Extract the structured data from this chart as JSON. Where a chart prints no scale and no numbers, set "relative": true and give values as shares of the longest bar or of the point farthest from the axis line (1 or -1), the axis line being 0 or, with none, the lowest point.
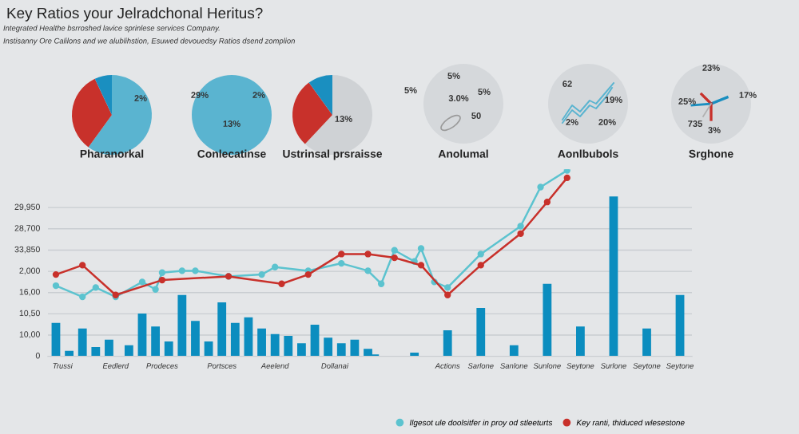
{
  "chart_data": [
    {
      "type": "other",
      "title": "Key Ratios your Jelradchonal Heritus?",
      "subtitle": "Integrated Healthe bsrroshed lavice sprinlese services Company.",
      "annotations": [
        "Instisanny Ore Calilons and we alublihstion, Esuwed devouedsy Ratios dsend zomplion"
      ]
    },
    {
      "type": "pie",
      "title": "Pharanorkal",
      "categories": [
        null,
        null,
        null
      ],
      "values": [
        60,
        33,
        7
      ],
      "colors": [
        "#5ab4d0",
        "#c8312b",
        "#1a8fc0"
      ],
      "annotations": [
        "2%"
      ]
    },
    {
      "type": "pie",
      "title": "Conlecatinse",
      "categories": [
        null
      ],
      "values": [
        100
      ],
      "colors": [
        "#5ab4d0"
      ],
      "annotations": [
        "2%",
        "13%",
        "29%"
      ]
    },
    {
      "type": "pie",
      "title": "Ustrinsal prsraisse",
      "categories": [
        null,
        null,
        null
      ],
      "values": [
        62,
        28,
        10
      ],
      "colors": [
        "#cfd2d5",
        "#c8312b",
        "#1a8fc0"
      ],
      "annotations": [
        "13%"
      ]
    },
    {
      "type": "other",
      "title": "Anolumal",
      "annotations": [
        "5%",
        "5%",
        "3.0%",
        "5%",
        "50"
      ]
    },
    {
      "type": "other",
      "title": "Aonlbubols",
      "annotations": [
        "62",
        "19%",
        "2%",
        "20%"
      ]
    },
    {
      "type": "other",
      "title": "Srghone",
      "annotations": [
        "23%",
        "25%",
        "17%",
        "735",
        "3%"
      ]
    },
    {
      "type": "bar",
      "relative": true,
      "grid": "y",
      "legend": "bottom",
      "marker": "circle",
      "categories": [
        null,
        "Trussi",
        null,
        null,
        null,
        null,
        null,
        null,
        null,
        "Eedlerd",
        null,
        null,
        null,
        null,
        null,
        null,
        "Prodeces",
        null,
        null,
        null,
        null,
        null,
        null,
        null,
        null,
        "Portsces",
        null,
        null,
        null,
        null,
        null,
        null,
        null,
        "Aeelend",
        null,
        null,
        null,
        null,
        null,
        null,
        null,
        null,
        "Dollanai",
        null,
        null,
        null,
        null,
        null,
        null,
        null,
        null,
        null,
        null,
        null,
        null,
        null,
        null,
        null,
        null,
        "Actions",
        null,
        null,
        null,
        null,
        "Sarlone",
        null,
        null,
        null,
        null,
        "Sanlone",
        null,
        null,
        null,
        null,
        "Sunlone",
        null,
        null,
        null,
        null,
        "Seytone",
        null,
        null,
        null,
        null,
        "Surlone",
        null,
        null,
        null,
        null,
        "Seytone",
        null,
        null,
        null,
        null,
        "Seytone"
      ],
      "annotations": [
        "0",
        "10,00",
        "10,50",
        "16,00",
        "2,000",
        "33,850",
        "28,700",
        "29,950"
      ],
      "series": [
        {
          "type": "bar",
          "color": "#0b8dbf",
          "values": [
            0.18,
            null,
            0.03,
            null,
            0.15,
            null,
            0.05,
            null,
            0.09,
            null,
            null,
            0.06,
            null,
            0.23,
            null,
            0.16,
            null,
            0.08,
            null,
            0.33,
            null,
            0.19,
            null,
            0.08,
            null,
            0.29,
            null,
            0.18,
            null,
            0.21,
            null,
            0.15,
            null,
            0.12,
            null,
            0.11,
            null,
            0.07,
            null,
            0.17,
            null,
            0.1,
            null,
            0.07,
            null,
            0.09,
            null,
            0.04,
            0.01,
            null,
            null,
            null,
            null,
            null,
            0.02,
            null,
            null,
            null,
            null,
            0.14,
            null,
            null,
            null,
            null,
            0.26,
            null,
            null,
            null,
            null,
            0.06,
            null,
            null,
            null,
            null,
            0.39,
            null,
            null,
            null,
            null,
            0.16,
            null,
            null,
            null,
            null,
            0.86,
            null,
            null,
            null,
            null,
            0.15,
            null,
            null,
            null,
            null,
            0.33
          ]
        },
        {
          "type": "line",
          "name": "Ilgesot ule doolsitfer in proy od stleeturts",
          "color": "#5cc3cf",
          "values": [
            0.38,
            null,
            null,
            null,
            0.32,
            null,
            0.37,
            null,
            null,
            0.32,
            null,
            null,
            null,
            0.4,
            null,
            0.36,
            0.45,
            null,
            null,
            0.46,
            null,
            0.46,
            null,
            null,
            null,
            null,
            0.43,
            null,
            null,
            null,
            null,
            0.44,
            null,
            0.48,
            null,
            null,
            null,
            null,
            0.46,
            null,
            null,
            null,
            null,
            0.5,
            null,
            null,
            null,
            0.46,
            null,
            0.39,
            null,
            0.57,
            null,
            null,
            0.51,
            0.58,
            null,
            0.4,
            null,
            0.37,
            null,
            null,
            null,
            null,
            0.55,
            null,
            null,
            null,
            null,
            null,
            0.7,
            null,
            null,
            0.91,
            null,
            null,
            null,
            1,
            null,
            null,
            null,
            null,
            null,
            null,
            null,
            null,
            null,
            null,
            null,
            null,
            null,
            null,
            null,
            null,
            null
          ]
        },
        {
          "type": "line",
          "name": "Key ranti, thiduced wlesestone",
          "color": "#c8312b",
          "values": [
            0.44,
            null,
            null,
            null,
            0.49,
            null,
            null,
            null,
            null,
            0.33,
            null,
            null,
            null,
            null,
            null,
            null,
            0.41,
            null,
            null,
            null,
            null,
            null,
            null,
            null,
            null,
            null,
            0.43,
            null,
            null,
            null,
            null,
            null,
            null,
            null,
            0.39,
            null,
            null,
            null,
            0.44,
            null,
            null,
            null,
            null,
            0.55,
            null,
            null,
            null,
            0.55,
            null,
            null,
            null,
            0.53,
            null,
            null,
            null,
            0.49,
            null,
            null,
            null,
            0.33,
            null,
            null,
            null,
            null,
            0.49,
            null,
            null,
            null,
            null,
            null,
            0.66,
            null,
            null,
            null,
            0.83,
            null,
            null,
            0.96,
            null,
            null,
            null,
            null,
            null,
            null,
            null,
            null,
            null,
            null,
            null,
            null,
            null,
            null,
            null,
            null,
            null
          ]
        }
      ]
    }
  ]
}
